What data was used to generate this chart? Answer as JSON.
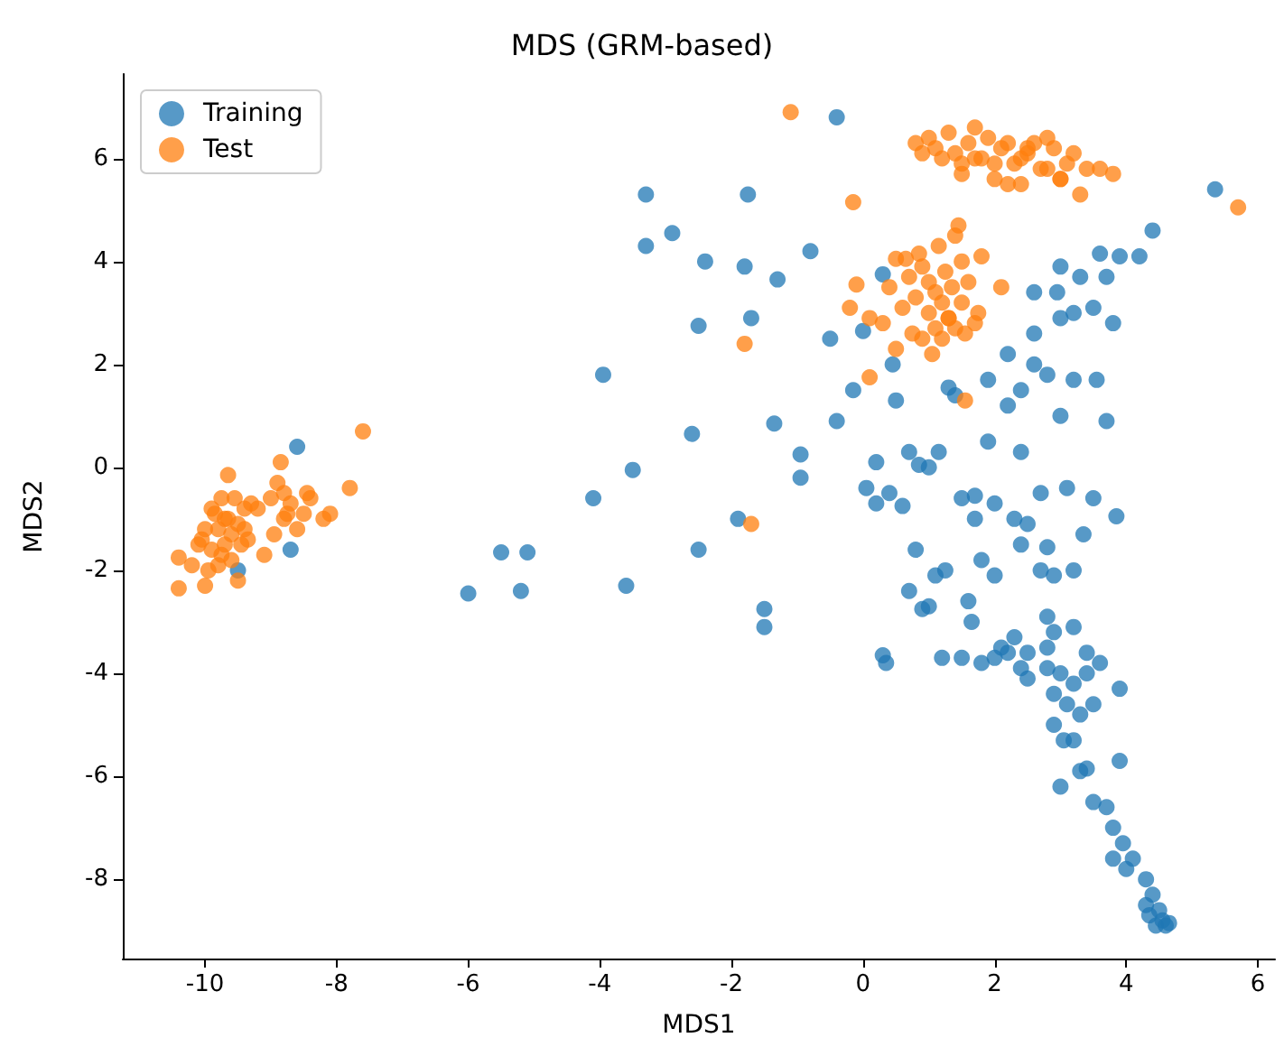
{
  "chart_data": {
    "type": "scatter",
    "title": "MDS (GRM-based)",
    "xlabel": "MDS1",
    "ylabel": "MDS2",
    "xlim": [
      -11.25,
      6.26
    ],
    "ylim": [
      -9.54,
      7.64
    ],
    "xticks": [
      -10,
      -8,
      -6,
      -4,
      -2,
      0,
      2,
      4,
      6
    ],
    "yticks": [
      -8,
      -6,
      -4,
      -2,
      0,
      2,
      4,
      6
    ],
    "grid": false,
    "legend": "top left",
    "marker": "circle",
    "series": [
      {
        "name": "Training",
        "color": "#1f77b4",
        "x": [
          -8.6,
          -9.5,
          -8.7,
          -6.0,
          -5.5,
          -5.2,
          -5.1,
          -4.1,
          -3.6,
          -3.5,
          -3.95,
          -3.3,
          -3.3,
          -2.9,
          -2.4,
          -2.5,
          -2.6,
          -2.5,
          -1.9,
          -1.8,
          -1.75,
          -1.7,
          -1.3,
          -1.35,
          -1.5,
          -1.5,
          -0.95,
          -0.95,
          -0.8,
          -0.5,
          -0.4,
          -0.4,
          -0.15,
          0.0,
          0.05,
          0.2,
          0.2,
          0.3,
          0.4,
          0.45,
          0.5,
          0.6,
          0.3,
          0.35,
          0.7,
          0.8,
          0.7,
          0.9,
          0.85,
          1.0,
          1.0,
          1.1,
          1.2,
          1.25,
          1.3,
          1.15,
          1.4,
          1.5,
          1.5,
          1.6,
          1.65,
          1.7,
          1.8,
          1.7,
          1.8,
          1.9,
          1.9,
          2.0,
          2.0,
          2.1,
          2.2,
          2.2,
          2.2,
          2.3,
          2.3,
          2.4,
          2.4,
          2.4,
          2.5,
          2.5,
          2.5,
          2.6,
          2.6,
          2.6,
          2.7,
          2.7,
          2.8,
          2.8,
          2.8,
          2.8,
          2.8,
          2.9,
          2.9,
          2.9,
          2.9,
          2.95,
          3.0,
          3.0,
          3.0,
          3.05,
          3.1,
          3.1,
          3.2,
          3.2,
          3.2,
          3.2,
          3.3,
          3.3,
          3.3,
          3.35,
          3.4,
          3.5,
          3.5,
          3.5,
          3.5,
          3.55,
          3.6,
          3.6,
          3.7,
          3.7,
          3.7,
          3.8,
          3.8,
          3.8,
          3.85,
          3.9,
          3.9,
          3.95,
          3.9,
          4.0,
          4.1,
          4.2,
          4.3,
          4.3,
          4.35,
          4.4,
          4.4,
          4.45,
          4.5,
          4.55,
          4.6,
          4.65,
          5.35,
          2.0,
          2.4,
          3.0,
          3.2,
          3.4,
          3.0,
          3.2,
          3.4
        ],
        "values": [
          0.4,
          -2.0,
          -1.6,
          -2.45,
          -1.65,
          -2.4,
          -1.65,
          -0.6,
          -2.3,
          -0.05,
          1.8,
          5.3,
          4.3,
          4.55,
          4.0,
          2.75,
          0.65,
          -1.6,
          -1.0,
          3.9,
          5.3,
          2.9,
          3.65,
          0.85,
          -2.75,
          -3.1,
          0.25,
          -0.2,
          4.2,
          2.5,
          6.8,
          0.9,
          1.5,
          2.65,
          -0.4,
          -0.7,
          0.1,
          3.75,
          -0.5,
          2.0,
          1.3,
          -0.75,
          -3.65,
          -3.8,
          0.3,
          -1.6,
          -2.4,
          -2.75,
          0.05,
          -2.7,
          0.0,
          -2.1,
          -3.7,
          -2.0,
          1.55,
          0.3,
          1.4,
          -3.7,
          -0.6,
          -2.6,
          -3.0,
          -1.0,
          -1.8,
          -0.55,
          -3.8,
          1.7,
          0.5,
          -0.7,
          -2.1,
          -3.5,
          -3.6,
          2.2,
          1.2,
          -3.3,
          -1.0,
          1.5,
          -1.5,
          0.3,
          -1.1,
          -3.6,
          -4.1,
          2.0,
          3.4,
          2.6,
          -0.5,
          -2.0,
          -3.9,
          -1.55,
          -2.9,
          1.8,
          -3.5,
          -3.2,
          -2.1,
          -4.4,
          -5.0,
          3.4,
          3.9,
          2.9,
          1.0,
          -5.3,
          -0.4,
          -4.6,
          -2.0,
          1.7,
          3.0,
          -3.1,
          -5.9,
          -4.8,
          3.7,
          -1.3,
          -3.6,
          -0.6,
          -4.6,
          -6.5,
          3.1,
          1.7,
          -3.8,
          4.15,
          -6.6,
          3.7,
          0.9,
          -7.0,
          -7.6,
          2.8,
          -0.95,
          -5.7,
          4.1,
          -7.3,
          -4.3,
          -7.8,
          -7.6,
          4.1,
          -8.0,
          -8.5,
          -8.7,
          -8.3,
          4.6,
          -8.9,
          -8.6,
          -8.8,
          -8.9,
          -8.85,
          5.4,
          -3.7,
          -3.9,
          -4.0,
          -4.2,
          -4.0,
          -6.2,
          -5.3,
          -5.85
        ]
      },
      {
        "name": "Test",
        "color": "#ff7f0e",
        "x": [
          -10.4,
          -10.4,
          -10.2,
          -10.1,
          -10.0,
          -10.0,
          -9.9,
          -9.9,
          -9.8,
          -9.8,
          -9.75,
          -9.7,
          -9.7,
          -9.65,
          -9.6,
          -9.6,
          -9.55,
          -9.5,
          -9.5,
          -9.45,
          -9.4,
          -9.4,
          -9.35,
          -9.3,
          -9.2,
          -9.1,
          -9.0,
          -8.95,
          -8.9,
          -8.85,
          -8.8,
          -8.8,
          -8.75,
          -8.7,
          -8.6,
          -8.5,
          -8.45,
          -8.4,
          -8.2,
          -8.1,
          -7.8,
          -7.6,
          -9.75,
          -9.95,
          -10.05,
          -9.65,
          -9.85,
          -1.1,
          -0.15,
          5.7,
          -1.8,
          -1.7,
          -0.2,
          0.1,
          -0.1,
          0.1,
          0.3,
          0.4,
          0.5,
          0.5,
          0.6,
          0.7,
          0.75,
          0.8,
          0.85,
          0.9,
          0.9,
          1.0,
          1.0,
          1.05,
          1.1,
          1.1,
          1.15,
          1.2,
          1.2,
          1.25,
          1.3,
          1.35,
          1.4,
          1.4,
          1.45,
          1.5,
          1.5,
          1.55,
          1.6,
          1.7,
          1.75,
          1.8,
          2.1,
          1.3,
          0.65,
          1.55,
          0.8,
          0.9,
          1.0,
          1.1,
          1.2,
          1.3,
          1.4,
          1.5,
          1.6,
          1.7,
          1.8,
          1.9,
          2.0,
          2.1,
          2.2,
          2.3,
          2.4,
          2.5,
          2.6,
          2.7,
          2.8,
          2.9,
          3.0,
          3.1,
          3.2,
          3.3,
          3.4,
          3.6,
          3.8,
          1.5,
          2.0,
          2.5,
          3.0,
          2.2,
          2.8,
          1.7,
          2.4
        ],
        "values": [
          -1.75,
          -2.35,
          -1.9,
          -1.5,
          -1.2,
          -2.3,
          -0.8,
          -1.6,
          -1.2,
          -1.9,
          -0.6,
          -1.0,
          -1.5,
          -0.15,
          -1.3,
          -1.8,
          -0.6,
          -1.1,
          -2.2,
          -1.5,
          -0.8,
          -1.2,
          -1.4,
          -0.7,
          -0.8,
          -1.7,
          -0.6,
          -1.3,
          -0.3,
          0.1,
          -0.5,
          -1.0,
          -0.9,
          -0.7,
          -1.2,
          -0.9,
          -0.5,
          -0.6,
          -1.0,
          -0.9,
          -0.4,
          0.7,
          -1.7,
          -2.0,
          -1.4,
          -1.0,
          -0.9,
          6.9,
          5.15,
          5.05,
          2.4,
          -1.1,
          3.1,
          1.75,
          3.55,
          2.9,
          2.8,
          3.5,
          4.05,
          2.3,
          3.1,
          3.7,
          2.6,
          3.3,
          4.15,
          2.5,
          3.9,
          3.0,
          3.6,
          2.2,
          2.7,
          3.4,
          4.3,
          2.5,
          3.2,
          3.8,
          2.9,
          3.5,
          4.5,
          2.7,
          4.7,
          3.2,
          4.0,
          2.6,
          3.6,
          2.8,
          3.0,
          4.1,
          3.5,
          2.9,
          4.05,
          1.3,
          6.3,
          6.1,
          6.4,
          6.2,
          6.0,
          6.5,
          6.1,
          5.9,
          6.3,
          6.6,
          6.0,
          6.4,
          5.6,
          6.2,
          6.3,
          5.9,
          6.0,
          6.1,
          6.3,
          5.8,
          6.4,
          6.2,
          5.6,
          5.9,
          6.1,
          5.3,
          5.8,
          5.8,
          5.7,
          5.7,
          5.9,
          6.2,
          5.6,
          5.5,
          5.8,
          6.0,
          5.5
        ]
      }
    ]
  }
}
